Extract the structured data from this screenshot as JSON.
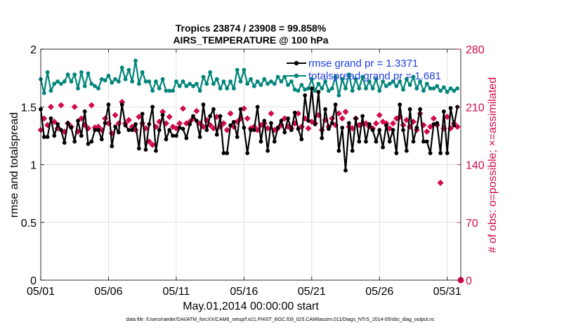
{
  "chart_data": {
    "type": "line",
    "title": "Tropics 23874 / 23908 = 99.858%",
    "subtitle": "AIRS_TEMPERATURE @ 100 hPa",
    "xlabel": "May.01,2014 00:00:00 start",
    "ylabel": "rmse and totalspread",
    "ylabel_right": "# of obs: o=possible; ×=assimilated",
    "xlim": [
      0,
      31
    ],
    "ylim": [
      0,
      2
    ],
    "ylim_right": [
      0,
      280
    ],
    "x_ticks": [
      0,
      5,
      10,
      15,
      20,
      25,
      30
    ],
    "x_tick_labels": [
      "05/01",
      "05/06",
      "05/11",
      "05/16",
      "05/21",
      "05/26",
      "05/31"
    ],
    "y_tick_labels": [
      "0",
      "0.5",
      "1",
      "1.5",
      "2"
    ],
    "y_ticks": [
      0,
      0.5,
      1,
      1.5,
      2
    ],
    "y2_tick_labels": [
      "0",
      "70",
      "140",
      "210",
      "280"
    ],
    "y2_ticks": [
      0,
      70,
      140,
      210,
      280
    ],
    "grid": true,
    "legend_position": "top-right",
    "footer": "data file: /Users/raeder/DAI/ATM_forcXX/CAM6_setup/f.e21.FHIST_BGC.f09_025.CAM6assim.011/Diags_NTrS_2014-05/obs_diag_output.nc",
    "series": [
      {
        "name": "rmse grand pr = 1.3371",
        "color": "#000000",
        "marker": "circle",
        "axis": "left",
        "x": [
          0.0,
          0.25,
          0.5,
          0.75,
          1.0,
          1.25,
          1.5,
          1.75,
          2.0,
          2.25,
          2.5,
          2.75,
          3.0,
          3.25,
          3.5,
          3.75,
          4.0,
          4.25,
          4.5,
          4.75,
          5.0,
          5.25,
          5.5,
          5.75,
          6.0,
          6.25,
          6.5,
          6.75,
          7.0,
          7.25,
          7.5,
          7.75,
          8.0,
          8.25,
          8.5,
          8.75,
          9.0,
          9.25,
          9.5,
          9.75,
          10.0,
          10.25,
          10.5,
          10.75,
          11.0,
          11.25,
          11.5,
          11.75,
          12.0,
          12.25,
          12.5,
          12.75,
          13.0,
          13.25,
          13.5,
          13.75,
          14.0,
          14.25,
          14.5,
          14.75,
          15.0,
          15.25,
          15.5,
          15.75,
          16.0,
          16.25,
          16.5,
          16.75,
          17.0,
          17.25,
          17.5,
          17.75,
          18.0,
          18.25,
          18.5,
          18.75,
          19.0,
          19.25,
          19.5,
          19.75,
          20.0,
          20.25,
          20.5,
          20.75,
          21.0,
          21.25,
          21.5,
          21.75,
          22.0,
          22.25,
          22.5,
          22.75,
          23.0,
          23.25,
          23.5,
          23.75,
          24.0,
          24.25,
          24.5,
          24.75,
          25.0,
          25.25,
          25.5,
          25.75,
          26.0,
          26.25,
          26.5,
          26.75,
          27.0,
          27.25,
          27.5,
          27.75,
          28.0,
          28.25,
          28.5,
          28.75,
          29.0,
          29.25,
          29.5,
          29.75,
          30.0,
          30.25,
          30.5,
          30.75
        ],
        "values": [
          1.48,
          1.24,
          1.24,
          1.4,
          1.25,
          1.35,
          1.3,
          1.19,
          1.36,
          1.32,
          1.2,
          1.38,
          1.25,
          1.46,
          1.18,
          1.2,
          1.3,
          1.3,
          1.22,
          1.36,
          1.52,
          1.16,
          1.33,
          1.28,
          1.52,
          1.34,
          1.3,
          1.3,
          1.35,
          1.14,
          1.44,
          1.13,
          1.35,
          1.5,
          1.12,
          1.3,
          1.43,
          1.22,
          1.3,
          1.25,
          1.25,
          1.32,
          1.31,
          1.23,
          1.35,
          1.42,
          1.38,
          1.24,
          1.52,
          1.3,
          1.42,
          1.48,
          1.26,
          1.42,
          1.1,
          1.1,
          1.34,
          1.37,
          1.24,
          1.48,
          1.32,
          1.1,
          1.3,
          1.3,
          1.5,
          1.2,
          1.38,
          1.12,
          1.36,
          1.2,
          1.32,
          1.38,
          1.28,
          1.4,
          1.3,
          1.45,
          1.31,
          1.22,
          1.6,
          1.38,
          1.66,
          1.35,
          1.63,
          1.23,
          1.48,
          1.31,
          1.36,
          1.52,
          1.12,
          1.32,
          0.95,
          1.36,
          1.12,
          1.4,
          1.2,
          1.42,
          1.2,
          1.35,
          1.3,
          1.2,
          1.3,
          1.15,
          1.34,
          1.2,
          1.3,
          1.1,
          1.52,
          1.3,
          1.12,
          1.48,
          1.2,
          1.32,
          1.48,
          1.2,
          1.2,
          1.1,
          1.35,
          1.36,
          1.1,
          1.46,
          1.1,
          1.49,
          1.34,
          1.5
        ]
      },
      {
        "name": "totalspread grand pr = 1.681",
        "color": "#00857a",
        "marker": "circle",
        "axis": "left",
        "x": [
          0.0,
          0.25,
          0.5,
          0.75,
          1.0,
          1.25,
          1.5,
          1.75,
          2.0,
          2.25,
          2.5,
          2.75,
          3.0,
          3.25,
          3.5,
          3.75,
          4.0,
          4.25,
          4.5,
          4.75,
          5.0,
          5.25,
          5.5,
          5.75,
          6.0,
          6.25,
          6.5,
          6.75,
          7.0,
          7.25,
          7.5,
          7.75,
          8.0,
          8.25,
          8.5,
          8.75,
          9.0,
          9.25,
          9.5,
          9.75,
          10.0,
          10.25,
          10.5,
          10.75,
          11.0,
          11.25,
          11.5,
          11.75,
          12.0,
          12.25,
          12.5,
          12.75,
          13.0,
          13.25,
          13.5,
          13.75,
          14.0,
          14.25,
          14.5,
          14.75,
          15.0,
          15.25,
          15.5,
          15.75,
          16.0,
          16.25,
          16.5,
          16.75,
          17.0,
          17.25,
          17.5,
          17.75,
          18.0,
          18.25,
          18.5,
          18.75,
          19.0,
          19.25,
          19.5,
          19.75,
          20.0,
          20.25,
          20.5,
          20.75,
          21.0,
          21.25,
          21.5,
          21.75,
          22.0,
          22.25,
          22.5,
          22.75,
          23.0,
          23.25,
          23.5,
          23.75,
          24.0,
          24.25,
          24.5,
          24.75,
          25.0,
          25.25,
          25.5,
          25.75,
          26.0,
          26.25,
          26.5,
          26.75,
          27.0,
          27.25,
          27.5,
          27.75,
          28.0,
          28.25,
          28.5,
          28.75,
          29.0,
          29.25,
          29.5,
          29.75,
          30.0,
          30.25,
          30.5,
          30.75
        ],
        "values": [
          1.74,
          1.62,
          1.8,
          1.64,
          1.7,
          1.72,
          1.7,
          1.72,
          1.78,
          1.72,
          1.78,
          1.66,
          1.8,
          1.68,
          1.79,
          1.7,
          1.68,
          1.66,
          1.74,
          1.73,
          1.77,
          1.71,
          1.74,
          1.72,
          1.84,
          1.74,
          1.82,
          1.72,
          1.9,
          1.7,
          1.8,
          1.72,
          1.72,
          1.64,
          1.72,
          1.66,
          1.74,
          1.64,
          1.64,
          1.64,
          1.72,
          1.68,
          1.72,
          1.68,
          1.7,
          1.68,
          1.7,
          1.64,
          1.76,
          1.7,
          1.8,
          1.7,
          1.74,
          1.66,
          1.72,
          1.66,
          1.72,
          1.66,
          1.82,
          1.72,
          1.82,
          1.7,
          1.74,
          1.68,
          1.72,
          1.69,
          1.74,
          1.7,
          1.72,
          1.7,
          1.76,
          1.72,
          1.76,
          1.69,
          1.72,
          1.65,
          1.64,
          1.69,
          1.65,
          1.66,
          1.74,
          1.64,
          1.7,
          1.66,
          1.72,
          1.64,
          1.66,
          1.76,
          1.6,
          1.74,
          1.66,
          1.78,
          1.64,
          1.74,
          1.66,
          1.76,
          1.66,
          1.72,
          1.66,
          1.74,
          1.64,
          1.72,
          1.68,
          1.7,
          1.72,
          1.68,
          1.72,
          1.65,
          1.74,
          1.69,
          1.76,
          1.66,
          1.72,
          1.64,
          1.7,
          1.66,
          1.66,
          1.68,
          1.64,
          1.67,
          1.63,
          1.66,
          1.64,
          1.66
        ]
      },
      {
        "name": "obs possible",
        "color": "#d10a4f",
        "marker": "o",
        "axis": "right",
        "x": [
          31.0
        ],
        "values": [
          0
        ]
      },
      {
        "name": "obs assimilated",
        "color": "#d10a4f",
        "marker": "x",
        "axis": "right",
        "x": [
          0.0,
          0.25,
          0.5,
          0.75,
          1.0,
          1.25,
          1.5,
          1.75,
          2.0,
          2.25,
          2.5,
          2.75,
          3.0,
          3.25,
          3.5,
          3.75,
          4.0,
          4.25,
          4.5,
          4.75,
          5.0,
          5.25,
          5.5,
          5.75,
          6.0,
          6.25,
          6.5,
          6.75,
          7.0,
          7.25,
          7.5,
          7.75,
          8.0,
          8.25,
          8.5,
          8.75,
          9.0,
          9.25,
          9.5,
          9.75,
          10.0,
          10.25,
          10.5,
          10.75,
          11.0,
          11.25,
          11.5,
          11.75,
          12.0,
          12.25,
          12.5,
          12.75,
          13.0,
          13.25,
          13.5,
          13.75,
          14.0,
          14.25,
          14.5,
          14.75,
          15.0,
          15.25,
          15.5,
          15.75,
          16.0,
          16.25,
          16.5,
          16.75,
          17.0,
          17.25,
          17.5,
          17.75,
          18.0,
          18.25,
          18.5,
          18.75,
          19.0,
          19.25,
          19.5,
          19.75,
          20.0,
          20.25,
          20.5,
          20.75,
          21.0,
          21.25,
          21.5,
          21.75,
          22.0,
          22.25,
          22.5,
          22.75,
          23.0,
          23.25,
          23.5,
          23.75,
          24.0,
          24.25,
          24.5,
          24.75,
          25.0,
          25.25,
          25.5,
          25.75,
          26.0,
          26.25,
          26.5,
          26.75,
          27.0,
          27.25,
          27.5,
          27.75,
          28.0,
          28.25,
          28.5,
          28.75,
          29.0,
          29.25,
          29.5,
          29.75,
          30.0,
          30.25,
          30.5,
          30.75
        ],
        "values": [
          182,
          196,
          188,
          210,
          192,
          184,
          212,
          180,
          190,
          186,
          210,
          180,
          196,
          188,
          184,
          212,
          185,
          186,
          182,
          196,
          190,
          178,
          200,
          190,
          216,
          190,
          194,
          186,
          182,
          198,
          190,
          184,
          168,
          164,
          186,
          192,
          204,
          190,
          198,
          186,
          184,
          190,
          208,
          190,
          192,
          196,
          205,
          190,
          186,
          194,
          188,
          184,
          198,
          186,
          190,
          182,
          202,
          186,
          192,
          196,
          208,
          196,
          184,
          186,
          182,
          188,
          190,
          184,
          202,
          182,
          184,
          188,
          196,
          186,
          184,
          190,
          202,
          186,
          196,
          184,
          192,
          190,
          200,
          182,
          194,
          186,
          196,
          188,
          202,
          196,
          204,
          186,
          184,
          196,
          188,
          190,
          190,
          186,
          184,
          190,
          200,
          192,
          190,
          184,
          190,
          196,
          198,
          188,
          194,
          186,
          192,
          182,
          202,
          188,
          180,
          186,
          196,
          188,
          118,
          184,
          198,
          184,
          190,
          186
        ]
      }
    ]
  }
}
